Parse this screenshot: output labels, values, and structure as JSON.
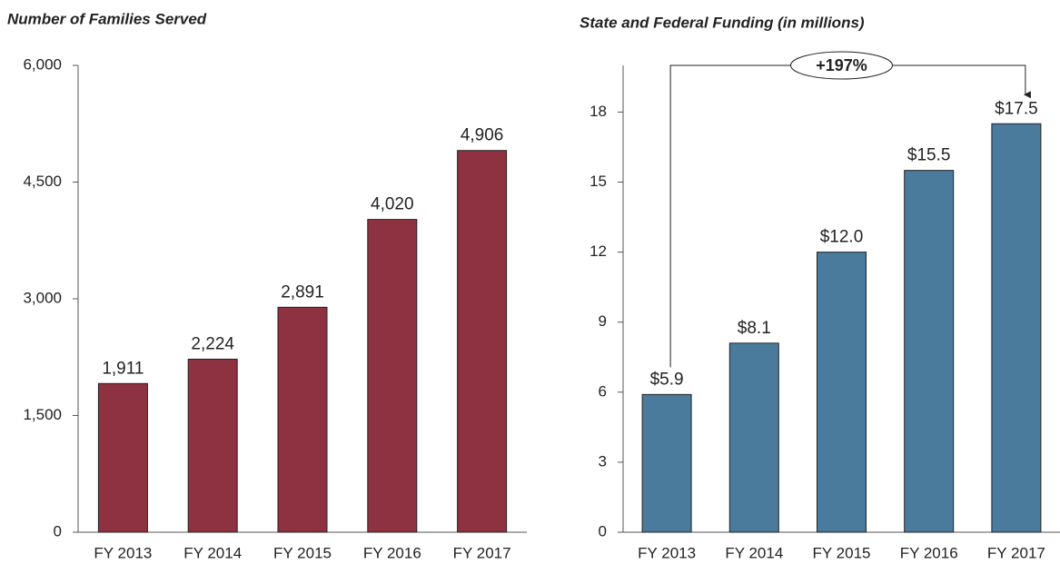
{
  "chart_data": [
    {
      "type": "bar",
      "title": "Number of Families Served",
      "categories": [
        "FY 2013",
        "FY 2014",
        "FY 2015",
        "FY 2016",
        "FY 2017"
      ],
      "values": [
        1911,
        2224,
        2891,
        4020,
        4906
      ],
      "value_labels": [
        "1,911",
        "2,224",
        "2,891",
        "4,020",
        "4,906"
      ],
      "color": "#8e3242",
      "ylim": [
        0,
        6000
      ],
      "yticks": [
        0,
        {
          "value": 1500,
          "label": "1,500"
        },
        {
          "value": 3000,
          "label": "3,000"
        },
        {
          "value": 4500,
          "label": "4,500"
        },
        {
          "value": 6000,
          "label": "6,000"
        }
      ],
      "grid": false
    },
    {
      "type": "bar",
      "title": "State and Federal Funding (in millions)",
      "categories": [
        "FY 2013",
        "FY 2014",
        "FY 2015",
        "FY 2016",
        "FY 2017"
      ],
      "values": [
        5.9,
        8.1,
        12.0,
        15.5,
        17.5
      ],
      "value_labels": [
        "$5.9",
        "$8.1",
        "$12.0",
        "$15.5",
        "$17.5"
      ],
      "color": "#4a7b9d",
      "ylim": [
        0,
        20
      ],
      "yticks": [
        0,
        3,
        6,
        9,
        12,
        15,
        18
      ],
      "grid": false,
      "annotation": "+197%"
    }
  ]
}
